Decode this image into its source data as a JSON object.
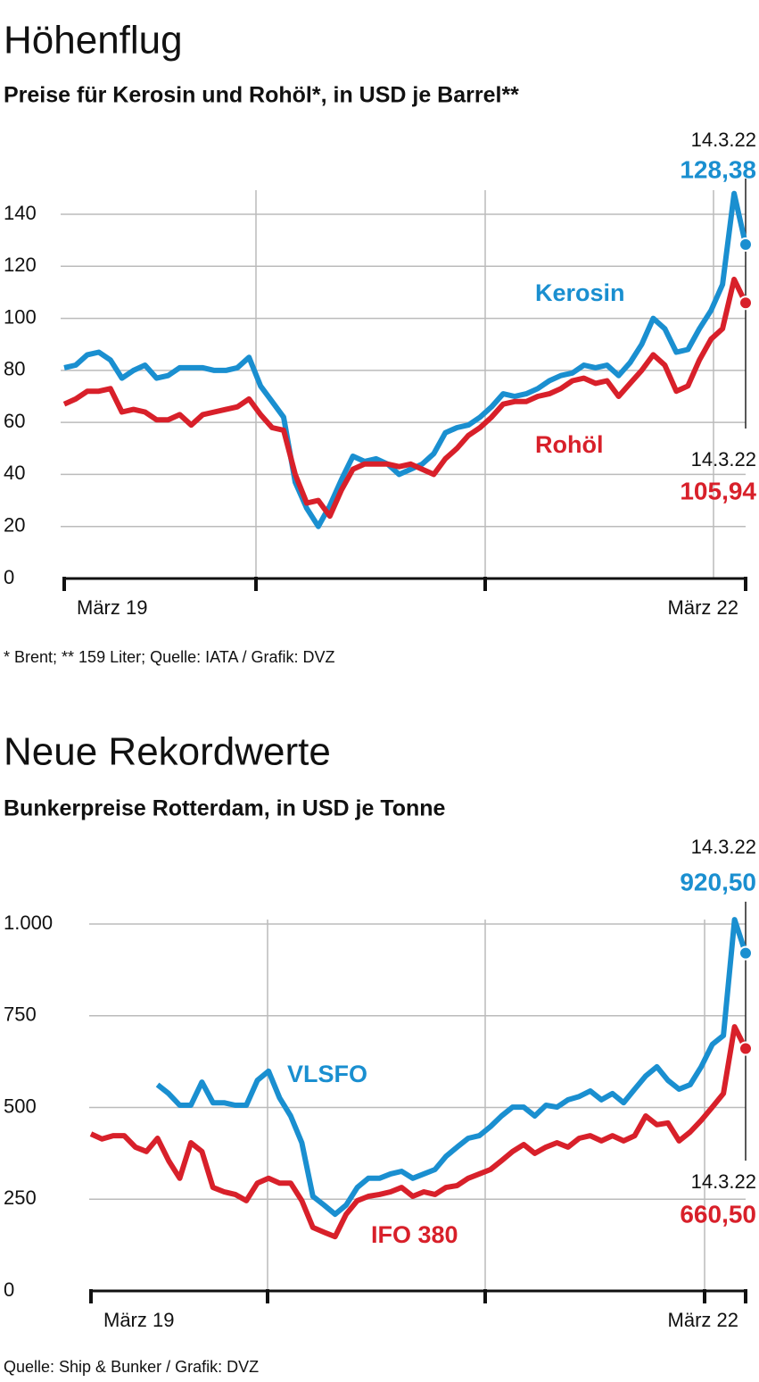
{
  "chart_data": [
    {
      "type": "line",
      "title": "Höhenflug",
      "subtitle": "Preise für Kerosin und Rohöl*, in USD je Barrel**",
      "note": "* Brent; ** 159 Liter; Quelle: IATA / Grafik: DVZ",
      "categories": [
        "März 19",
        null,
        null,
        null,
        null,
        null,
        null,
        null,
        null,
        null,
        null,
        null,
        null,
        null,
        null,
        null,
        null,
        null,
        null,
        null,
        null,
        null,
        null,
        null,
        null,
        null,
        null,
        null,
        null,
        null,
        null,
        null,
        null,
        null,
        null,
        null,
        null,
        null,
        null,
        null,
        null,
        null,
        null,
        null,
        null,
        null,
        null,
        null,
        null,
        null,
        null,
        null,
        null,
        null,
        null,
        null,
        null,
        null,
        null,
        "März 22"
      ],
      "series": [
        {
          "name": "Kerosin",
          "color": "#1a8fd0",
          "end_date": "14.3.22",
          "value_labels": {
            "59": "128,38"
          },
          "values": [
            81,
            82,
            86,
            87,
            84,
            77,
            80,
            82,
            77,
            78,
            81,
            81,
            81,
            80,
            80,
            81,
            85,
            74,
            68,
            62,
            37,
            27,
            20,
            28,
            38,
            47,
            45,
            46,
            44,
            40,
            42,
            44,
            48,
            56,
            58,
            59,
            62,
            66,
            71,
            70,
            71,
            73,
            76,
            78,
            79,
            82,
            81,
            82,
            78,
            83,
            90,
            100,
            96,
            87,
            88,
            96,
            103,
            113,
            148,
            128.38
          ]
        },
        {
          "name": "Rohöl",
          "color": "#d8202a",
          "end_date": "14.3.22",
          "value_labels": {
            "59": "105,94"
          },
          "values": [
            67,
            69,
            72,
            72,
            73,
            64,
            65,
            64,
            61,
            61,
            63,
            59,
            63,
            64,
            65,
            66,
            69,
            63,
            58,
            57,
            40,
            29,
            30,
            24,
            34,
            42,
            44,
            44,
            44,
            43,
            44,
            42,
            40,
            46,
            50,
            55,
            58,
            62,
            67,
            68,
            68,
            70,
            71,
            73,
            76,
            77,
            75,
            76,
            70,
            75,
            80,
            86,
            82,
            72,
            74,
            84,
            92,
            96,
            115,
            105.94
          ]
        }
      ],
      "ylim": [
        0,
        140
      ],
      "yticks": [
        0,
        20,
        40,
        60,
        80,
        100,
        120,
        140
      ],
      "grid": true
    },
    {
      "type": "line",
      "title": "Neue Rekordwerte",
      "subtitle": "Bunkerpreise Rotterdam, in USD je Tonne",
      "note": "Quelle: Ship & Bunker / Grafik: DVZ",
      "categories": [
        "März 19",
        null,
        null,
        null,
        null,
        null,
        null,
        null,
        null,
        null,
        null,
        null,
        null,
        null,
        null,
        null,
        null,
        null,
        null,
        null,
        null,
        null,
        null,
        null,
        null,
        null,
        null,
        null,
        null,
        null,
        null,
        null,
        null,
        null,
        null,
        null,
        null,
        null,
        null,
        null,
        null,
        null,
        null,
        null,
        null,
        null,
        null,
        null,
        null,
        null,
        null,
        null,
        null,
        null,
        null,
        null,
        null,
        null,
        null,
        "März 22"
      ],
      "series": [
        {
          "name": "VLSFO",
          "color": "#1a8fd0",
          "end_date": "14.3.22",
          "value_labels": {
            "59": "920,50"
          },
          "values": [
            null,
            null,
            null,
            null,
            null,
            null,
            562,
            538,
            506,
            506,
            569,
            513,
            513,
            506,
            506,
            574,
            599,
            526,
            477,
            404,
            258,
            234,
            209,
            234,
            282,
            307,
            307,
            319,
            326,
            307,
            319,
            331,
            367,
            392,
            416,
            423,
            448,
            477,
            501,
            501,
            477,
            506,
            501,
            521,
            530,
            545,
            521,
            538,
            513,
            550,
            586,
            611,
            574,
            550,
            562,
            611,
            672,
            696,
            1012,
            920.5
          ]
        },
        {
          "name": "IFO 380",
          "color": "#d8202a",
          "end_date": "14.3.22",
          "value_labels": {
            "59": "660,50"
          },
          "values": [
            428,
            414,
            423,
            423,
            392,
            380,
            416,
            355,
            307,
            404,
            380,
            282,
            270,
            263,
            246,
            294,
            307,
            294,
            294,
            246,
            173,
            160,
            148,
            209,
            246,
            258,
            263,
            270,
            282,
            258,
            270,
            263,
            282,
            287,
            307,
            319,
            331,
            355,
            380,
            399,
            375,
            392,
            404,
            392,
            416,
            423,
            409,
            423,
            409,
            423,
            477,
            453,
            458,
            409,
            433,
            465,
            501,
            538,
            720,
            660.5
          ]
        }
      ],
      "ylim": [
        0,
        1000
      ],
      "yticks": [
        0,
        250,
        500,
        750,
        {
          "value": 1000,
          "label": "1.000"
        }
      ],
      "grid": true
    }
  ]
}
